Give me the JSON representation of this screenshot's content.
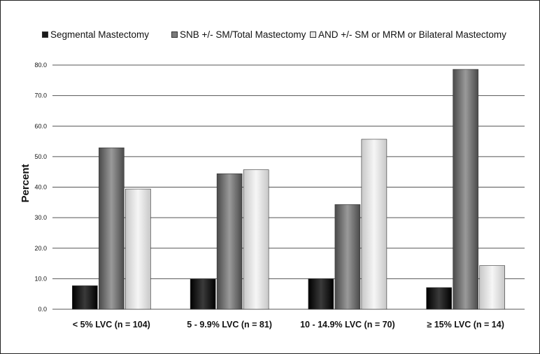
{
  "chart_data": {
    "type": "bar",
    "title": "",
    "xlabel": "",
    "ylabel": "Percent",
    "ylim": [
      0,
      80
    ],
    "ytick_step": 10,
    "ytick_labels": [
      "0.0",
      "10.0",
      "20.0",
      "30.0",
      "40.0",
      "50.0",
      "60.0",
      "70.0",
      "80.0"
    ],
    "grid": true,
    "legend_position": "top",
    "categories": [
      "< 5% LVC (n = 104)",
      "5 - 9.9% LVC (n = 81)",
      "10 - 14.9% LVC (n = 70)",
      "≥ 15% LVC (n = 14)"
    ],
    "series": [
      {
        "name": "Segmental Mastectomy",
        "values": [
          7.7,
          9.9,
          10.0,
          7.1
        ],
        "color": "#1a1a1a"
      },
      {
        "name": "SNB +/- SM/Total Mastectomy",
        "values": [
          52.9,
          44.4,
          34.3,
          78.6
        ],
        "color": "#7a7a7a"
      },
      {
        "name": "AND +/- SM or MRM or Bilateral Mastectomy",
        "values": [
          39.4,
          45.7,
          55.7,
          14.3
        ],
        "color": "#e6e6e6"
      }
    ]
  }
}
